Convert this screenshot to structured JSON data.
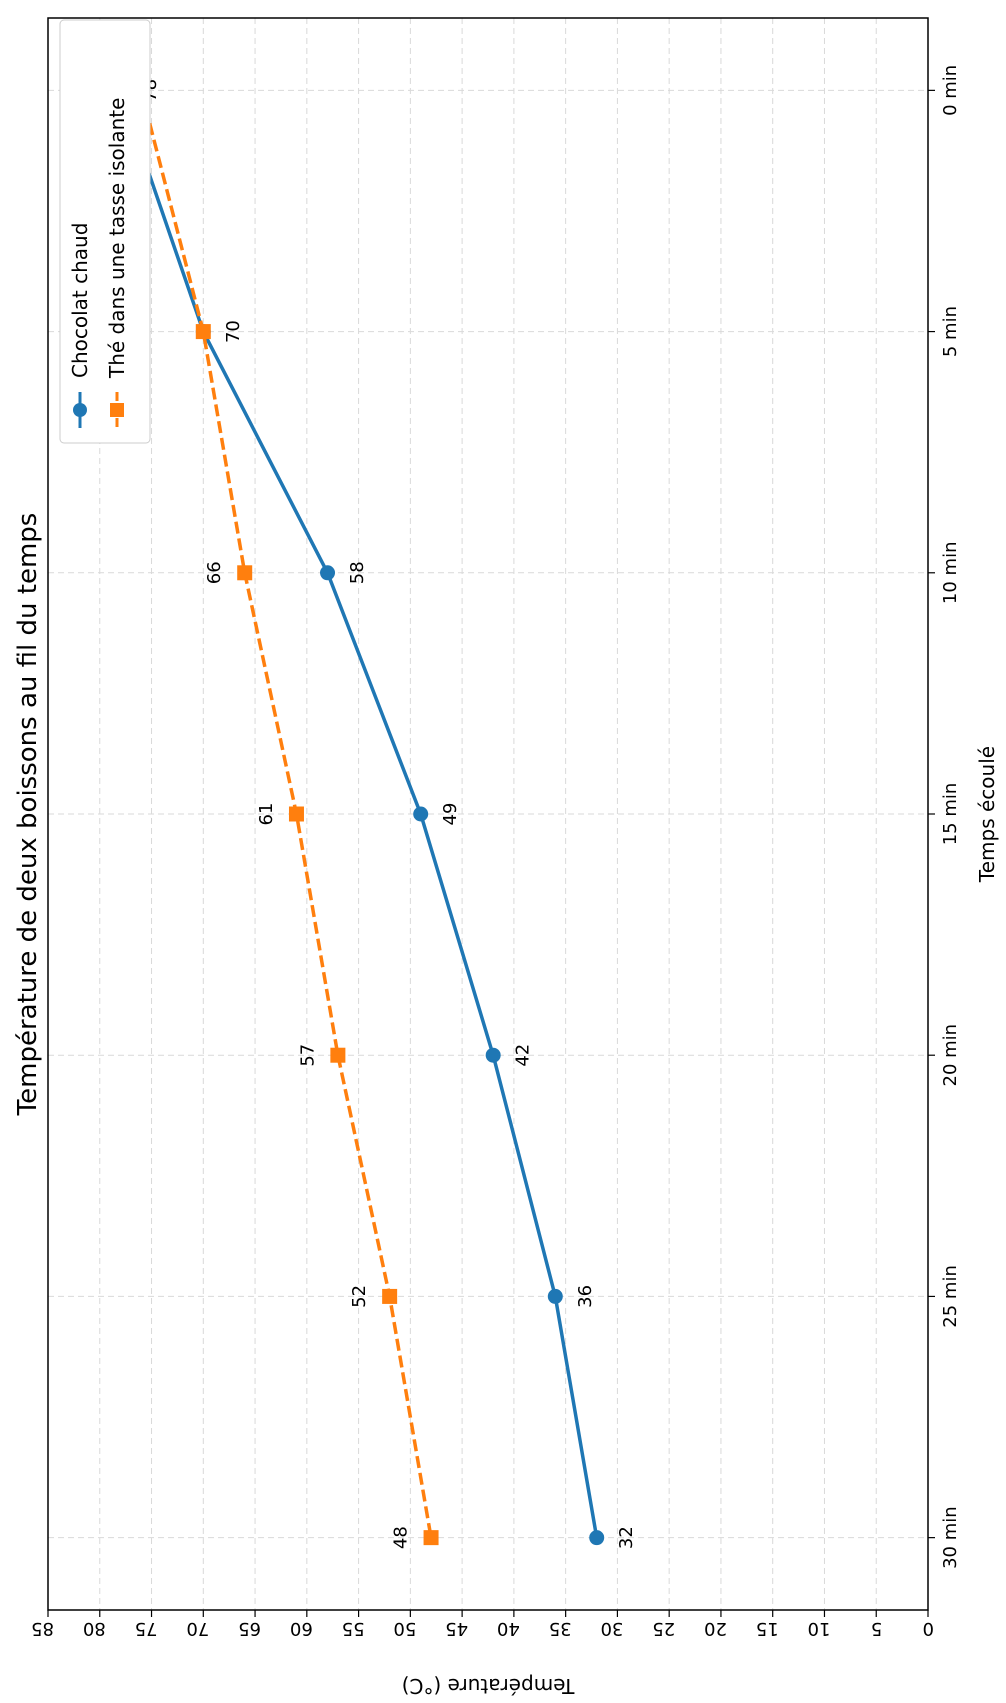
{
  "chart_data": {
    "type": "line",
    "title": "Température de deux boissons au fil du temps",
    "xlabel": "Temps écoulé",
    "ylabel": "Température (°C)",
    "categories": [
      "0 min",
      "5 min",
      "10 min",
      "15 min",
      "20 min",
      "25 min",
      "30 min"
    ],
    "x_values": [
      0,
      5,
      10,
      15,
      20,
      25,
      30
    ],
    "xlim": [
      -1.5,
      31.5
    ],
    "ylim": [
      0,
      85
    ],
    "y_ticks": [
      0,
      5,
      10,
      15,
      20,
      25,
      30,
      35,
      40,
      45,
      50,
      55,
      60,
      65,
      70,
      75,
      80,
      85
    ],
    "grid": true,
    "legend_position": "top-left (rotated view)",
    "series": [
      {
        "name": "Chocolat chaud",
        "color": "#1f77b4",
        "line_style": "solid",
        "marker": "circle",
        "values": [
          78,
          70,
          58,
          49,
          42,
          36,
          32
        ],
        "labels": [
          "78",
          "70",
          "58",
          "49",
          "42",
          "36",
          "32"
        ]
      },
      {
        "name": "Thé dans une tasse isolante",
        "color": "#ff7f0e",
        "line_style": "dashed",
        "marker": "square",
        "values": [
          76,
          70,
          66,
          61,
          57,
          52,
          48
        ],
        "labels": [
          "76",
          "",
          "66",
          "61",
          "57",
          "52",
          "48"
        ]
      }
    ]
  }
}
